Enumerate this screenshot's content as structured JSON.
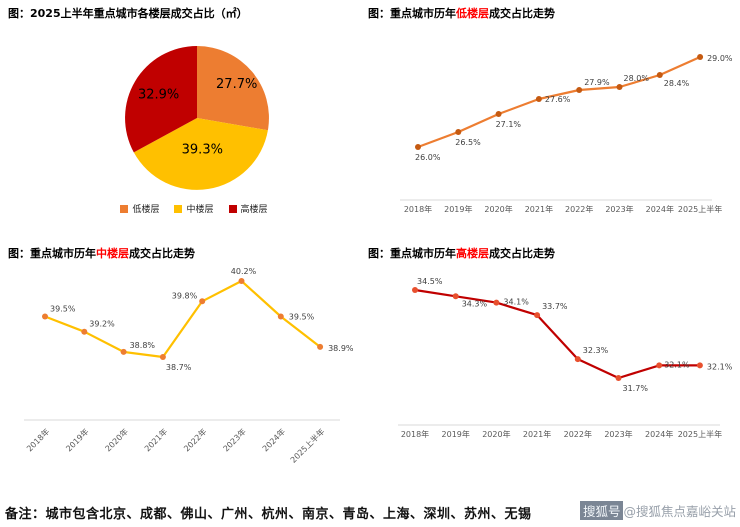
{
  "footer": {
    "note": "备注：城市包含北京、成都、佛山、广州、杭州、南京、青岛、上海、深圳、苏州、无锡",
    "watermark_badge": "搜狐号",
    "watermark_text": "@搜狐焦点嘉峪关站"
  },
  "chart_data": [
    {
      "type": "pie",
      "title": "图：2025上半年重点城市各楼层成交占比（㎡）",
      "labels": [
        "低楼层",
        "中楼层",
        "高楼层"
      ],
      "values": [
        27.7,
        39.3,
        32.9
      ],
      "data_labels": [
        "27.7%",
        "39.3%",
        "32.9%"
      ],
      "colors": [
        "#ED7D31",
        "#FFC000",
        "#C00000"
      ],
      "legend_position": "bottom"
    },
    {
      "type": "line",
      "title_prefix": "图：重点城市历年",
      "title_highlight": "低楼层",
      "title_suffix": "成交占比走势",
      "highlight_color": "#FF0000",
      "categories": [
        "2018年",
        "2019年",
        "2020年",
        "2021年",
        "2022年",
        "2023年",
        "2024年",
        "2025上半年"
      ],
      "values": [
        26.0,
        26.5,
        27.1,
        27.6,
        27.9,
        28.0,
        28.4,
        29.0
      ],
      "data_labels": [
        "26.0%",
        "26.5%",
        "27.1%",
        "27.6%",
        "27.9%",
        "28.0%",
        "28.4%",
        "29.0%"
      ],
      "line_color": "#ED7D31",
      "marker_color": "#C55A11",
      "grid": false,
      "y_axis_visible": false
    },
    {
      "type": "line",
      "title_prefix": "图：重点城市历年",
      "title_highlight": "中楼层",
      "title_suffix": "成交占比走势",
      "highlight_color": "#FF0000",
      "categories": [
        "2018年",
        "2019年",
        "2020年",
        "2021年",
        "2022年",
        "2023年",
        "2024年",
        "2025上半年"
      ],
      "values": [
        39.5,
        39.2,
        38.8,
        38.7,
        39.8,
        40.2,
        39.5,
        38.9
      ],
      "data_labels": [
        "39.5%",
        "39.2%",
        "38.8%",
        "38.7%",
        "39.8%",
        "40.2%",
        "39.5%",
        "38.9%"
      ],
      "line_color": "#FFC000",
      "marker_color": "#ED7D31",
      "grid": false,
      "y_axis_visible": false
    },
    {
      "type": "line",
      "title_prefix": "图：重点城市历年",
      "title_highlight": "高楼层",
      "title_suffix": "成交占比走势",
      "highlight_color": "#FF0000",
      "categories": [
        "2018年",
        "2019年",
        "2020年",
        "2021年",
        "2022年",
        "2023年",
        "2024年",
        "2025上半年"
      ],
      "values": [
        34.5,
        34.3,
        34.1,
        33.7,
        32.3,
        31.7,
        32.1,
        32.1
      ],
      "data_labels": [
        "34.5%",
        "34.3%",
        "34.1%",
        "33.7%",
        "32.3%",
        "31.7%",
        "32.1%",
        "32.1%"
      ],
      "line_color": "#C00000",
      "marker_color": "#E8502E",
      "grid": false,
      "y_axis_visible": false
    }
  ]
}
